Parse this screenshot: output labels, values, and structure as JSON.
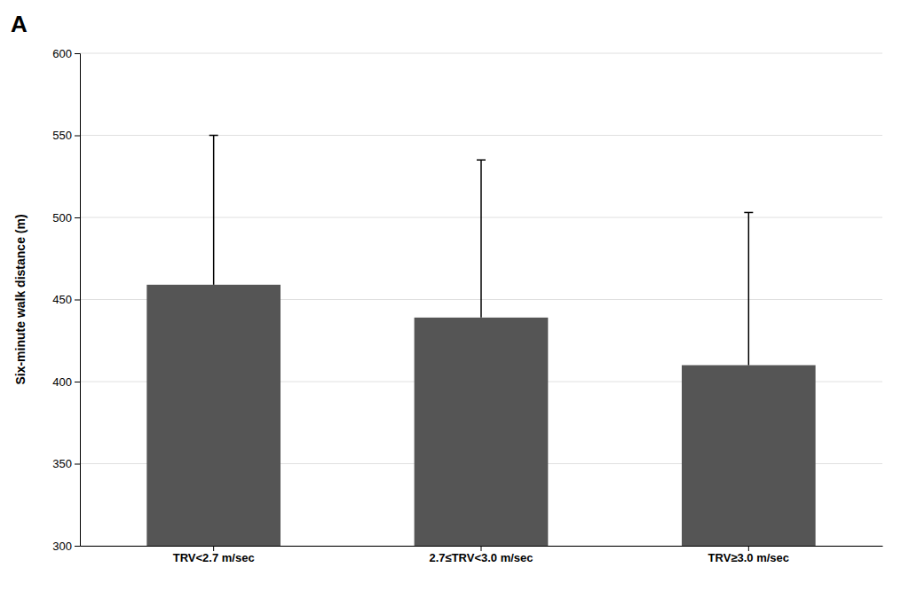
{
  "chart_data": {
    "type": "bar",
    "annotations": [
      "A"
    ],
    "categories": [
      "TRV<2.7 m/sec",
      "2.7≤TRV<3.0 m/sec",
      "TRV≥3.0 m/sec"
    ],
    "values": [
      459,
      439,
      410
    ],
    "error_upper": [
      91,
      96,
      93
    ],
    "color": "#555555",
    "ylabel": "Six-minute walk distance (m)",
    "ylim": [
      300,
      600
    ],
    "yticks": [
      300,
      350,
      400,
      450,
      500,
      550,
      600
    ],
    "grid": true
  }
}
